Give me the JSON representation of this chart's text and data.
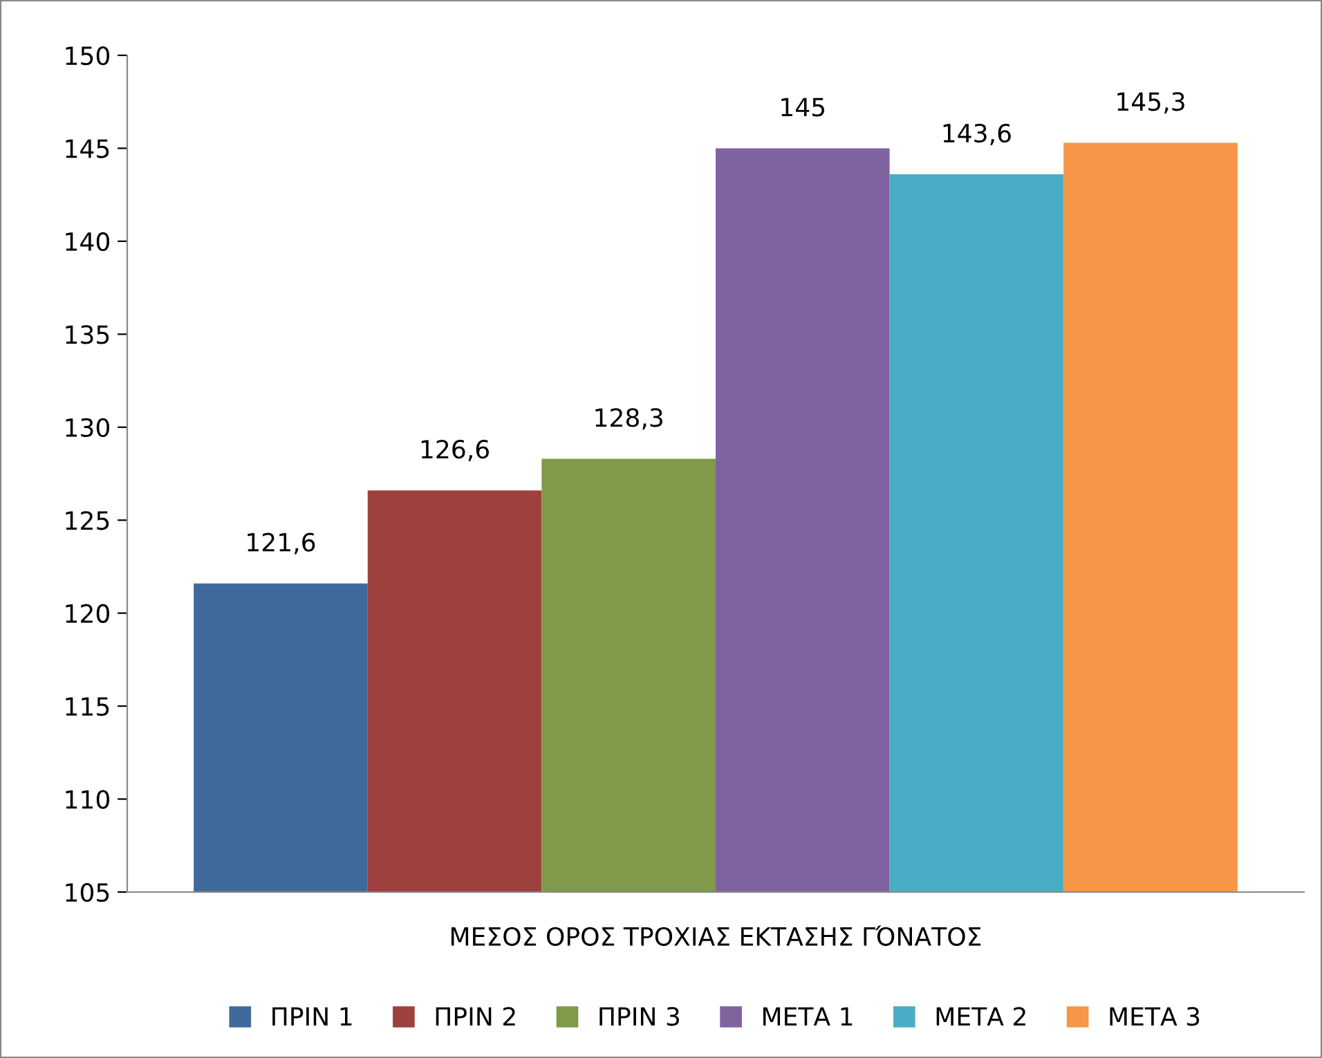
{
  "chart_data": {
    "type": "bar",
    "categories": [
      "ΜΕΣΟΣ ΟΡΟΣ ΤΡΟΧΙΑΣ ΕΚΤΑΣΗΣ ΓΌΝΑΤΟΣ"
    ],
    "series": [
      {
        "name": "ΠΡΙΝ 1",
        "color": "#416a9c",
        "values": [
          121.6
        ],
        "value_labels": [
          "121,6"
        ]
      },
      {
        "name": "ΠΡΙΝ 2",
        "color": "#9e413e",
        "values": [
          126.6
        ],
        "value_labels": [
          "126,6"
        ]
      },
      {
        "name": "ΠΡΙΝ 3",
        "color": "#7f9a48",
        "values": [
          128.3
        ],
        "value_labels": [
          "128,3"
        ]
      },
      {
        "name": "ΜΕΤΑ 1",
        "color": "#7f63a1",
        "values": [
          145
        ],
        "value_labels": [
          "145"
        ]
      },
      {
        "name": "ΜΕΤΑ 2",
        "color": "#4bacc6",
        "values": [
          143.6
        ],
        "value_labels": [
          "143,6"
        ]
      },
      {
        "name": "ΜΕΤΑ 3",
        "color": "#f79646",
        "values": [
          145.3
        ],
        "value_labels": [
          "145,3"
        ]
      }
    ],
    "ylim": [
      105,
      150
    ],
    "yticks": [
      105,
      110,
      115,
      120,
      125,
      130,
      135,
      140,
      145,
      150
    ],
    "grid": false,
    "legend": "bottom"
  }
}
